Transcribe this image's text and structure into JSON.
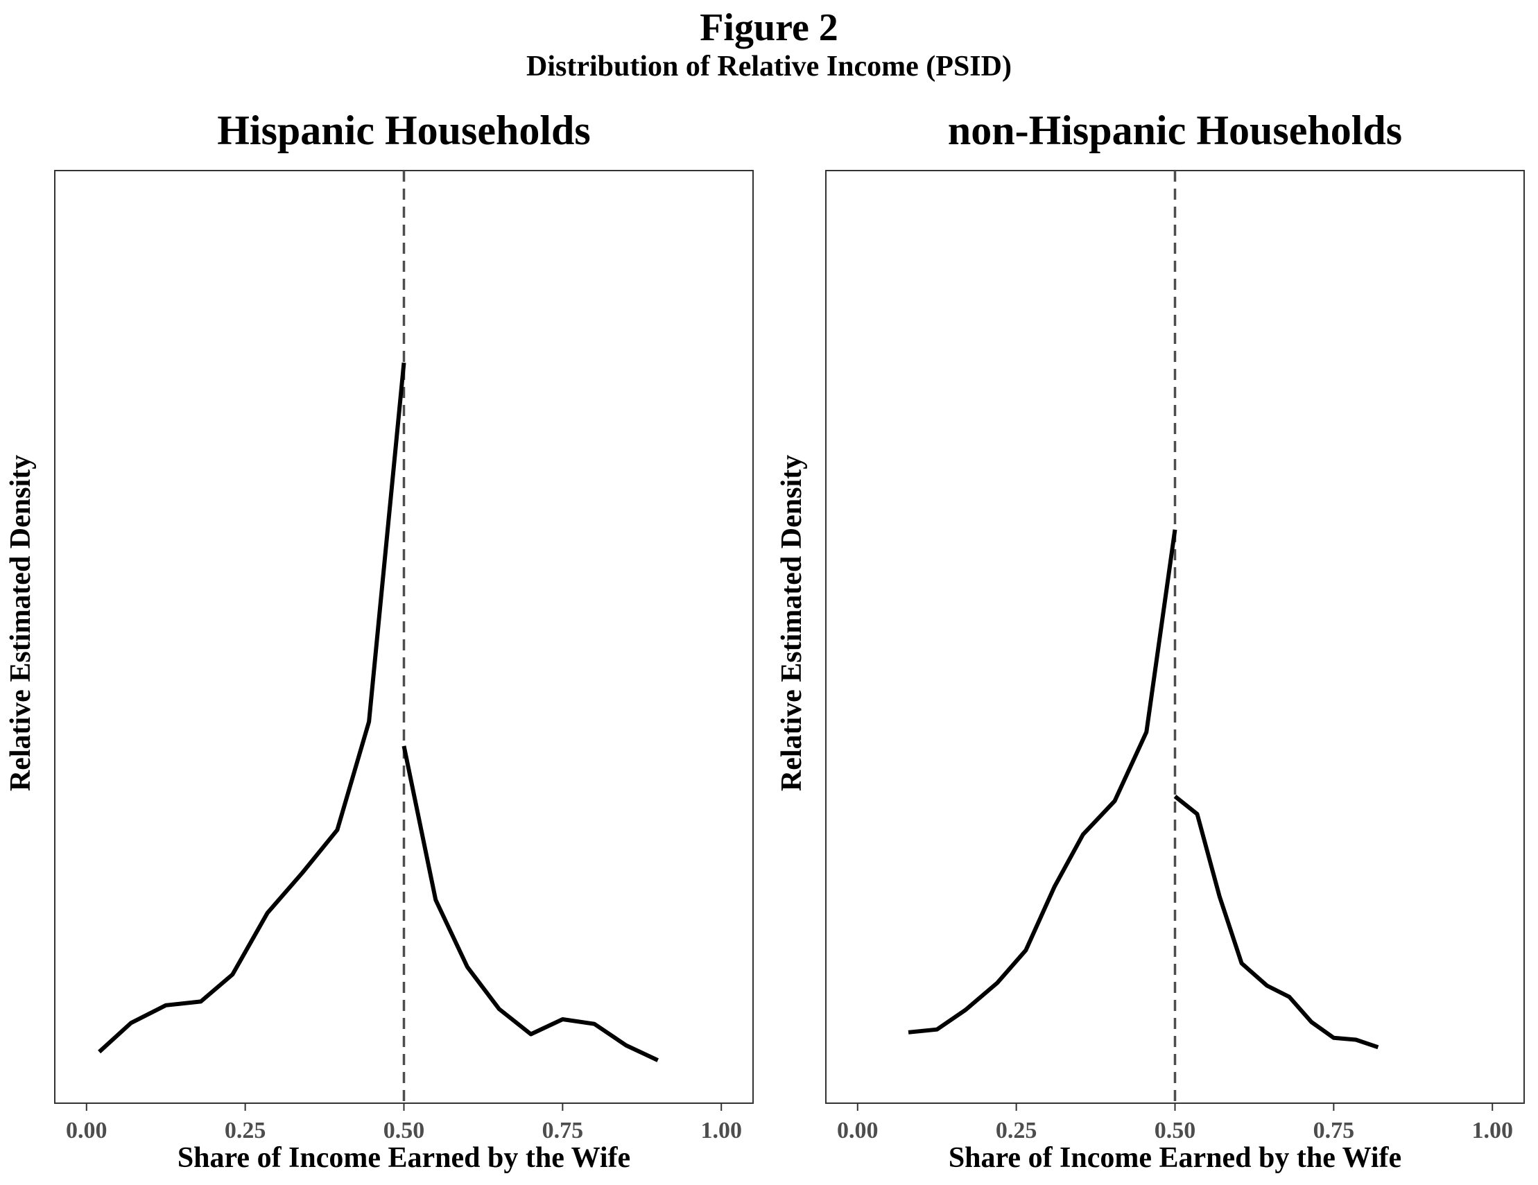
{
  "figure": {
    "title": "Figure 2",
    "subtitle": "Distribution of Relative Income (PSID)"
  },
  "colors": {
    "line": "#000000",
    "reference_line": "#4d4d4d",
    "tick_text": "#4d4d4d",
    "frame": "#333333"
  },
  "chart_data": [
    {
      "type": "line",
      "title": "Hispanic Households",
      "xlabel": "Share of Income Earned by the Wife",
      "ylabel": "Relative Estimated Density",
      "xlim": [
        -0.05,
        1.05
      ],
      "ylim": [
        0,
        1
      ],
      "x_ticks": [
        0,
        0.25,
        0.5,
        0.75,
        1
      ],
      "x_tick_labels": [
        "0.00",
        "0.25",
        "0.50",
        "0.75",
        "1.00"
      ],
      "y_ticks_shown": false,
      "grid": false,
      "reference_line": {
        "x": 0.5,
        "style": "dashed"
      },
      "segments": [
        {
          "x": [
            0.02,
            0.07,
            0.125,
            0.18,
            0.23,
            0.285,
            0.34,
            0.395,
            0.445,
            0.5
          ],
          "y": [
            0.055,
            0.086,
            0.105,
            0.109,
            0.138,
            0.204,
            0.247,
            0.293,
            0.409,
            0.794
          ]
        },
        {
          "x": [
            0.5,
            0.55,
            0.6,
            0.65,
            0.7,
            0.75,
            0.8,
            0.85,
            0.9
          ],
          "y": [
            0.383,
            0.218,
            0.146,
            0.101,
            0.074,
            0.09,
            0.085,
            0.062,
            0.046
          ]
        }
      ]
    },
    {
      "type": "line",
      "title": "non-Hispanic Households",
      "xlabel": "Share of Income Earned by the Wife",
      "ylabel": "Relative Estimated Density",
      "xlim": [
        -0.05,
        1.05
      ],
      "ylim": [
        0,
        1
      ],
      "x_ticks": [
        0,
        0.25,
        0.5,
        0.75,
        1
      ],
      "x_tick_labels": [
        "0.00",
        "0.25",
        "0.50",
        "0.75",
        "1.00"
      ],
      "y_ticks_shown": false,
      "grid": false,
      "reference_line": {
        "x": 0.5,
        "style": "dashed"
      },
      "segments": [
        {
          "x": [
            0.08,
            0.125,
            0.17,
            0.22,
            0.265,
            0.31,
            0.355,
            0.405,
            0.455,
            0.5
          ],
          "y": [
            0.076,
            0.079,
            0.1,
            0.129,
            0.164,
            0.232,
            0.288,
            0.324,
            0.398,
            0.615
          ]
        },
        {
          "x": [
            0.5,
            0.535,
            0.57,
            0.605,
            0.645,
            0.68,
            0.715,
            0.75,
            0.785,
            0.82
          ],
          "y": [
            0.329,
            0.31,
            0.222,
            0.15,
            0.126,
            0.114,
            0.087,
            0.07,
            0.068,
            0.06
          ]
        }
      ]
    }
  ]
}
